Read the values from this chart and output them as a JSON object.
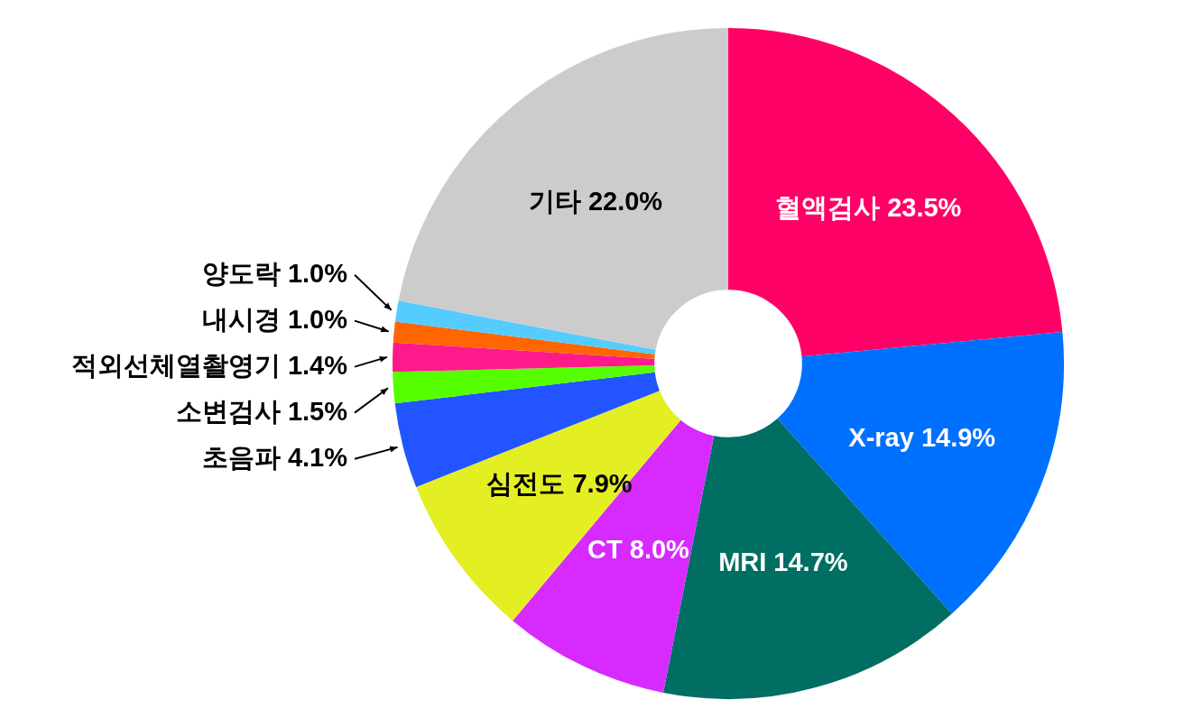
{
  "chart_data": {
    "type": "donut",
    "categories": [
      "혈액검사",
      "X-ray",
      "MRI",
      "CT",
      "심전도",
      "초음파",
      "소변검사",
      "적외선체열촬영기",
      "내시경",
      "양도락",
      "기타"
    ],
    "values": [
      23.5,
      14.9,
      14.7,
      8.0,
      7.9,
      4.1,
      1.5,
      1.4,
      1.0,
      1.0,
      22.0
    ],
    "colors": [
      "#ff0066",
      "#0070ff",
      "#006e62",
      "#d62aff",
      "#e3ef22",
      "#2255ff",
      "#55ff00",
      "#ff1a8c",
      "#ff6600",
      "#55ccff",
      "#cccccc"
    ],
    "value_labels": [
      "23.5%",
      "14.9%",
      "14.7%",
      "8.0%",
      "7.9%",
      "4.1%",
      "1.5%",
      "1.4%",
      "1.0%",
      "1.0%",
      "22.0%"
    ],
    "legend": false
  }
}
